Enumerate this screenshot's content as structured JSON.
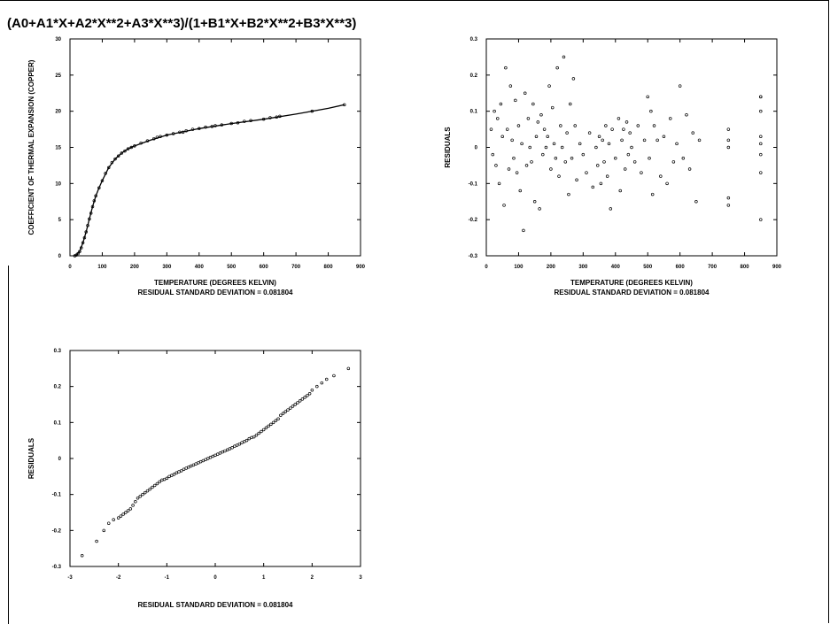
{
  "title": "(A0+A1*X+A2*X**2+A3*X**3)/(1+B1*X+B2*X**2+B3*X**3)",
  "chart_data": [
    {
      "id": "fit",
      "type": "scatter",
      "xlabel": "TEMPERATURE (DEGREES KELVIN)",
      "ylabel": "COEFFICIENT OF THERMAL EXPANSION (COPPER)",
      "subtitle": "RESIDUAL STANDARD DEVIATION = 0.081804",
      "xlim": [
        0,
        900
      ],
      "ylim": [
        0,
        30
      ],
      "xticks": [
        "0",
        "100",
        "200",
        "300",
        "400",
        "500",
        "600",
        "700",
        "800",
        "900"
      ],
      "yticks": [
        "0",
        "5",
        "10",
        "15",
        "20",
        "25",
        "30"
      ],
      "grid": false,
      "series": [
        {
          "kind": "points",
          "x": [
            15,
            20,
            25,
            30,
            35,
            40,
            45,
            50,
            55,
            60,
            65,
            70,
            75,
            80,
            90,
            100,
            110,
            120,
            130,
            140,
            150,
            160,
            170,
            180,
            190,
            200,
            220,
            240,
            260,
            270,
            280,
            300,
            320,
            340,
            350,
            360,
            380,
            400,
            420,
            440,
            450,
            470,
            500,
            520,
            540,
            560,
            600,
            620,
            640,
            650,
            750,
            850
          ],
          "y": [
            0.0,
            0.1,
            0.3,
            0.6,
            1.1,
            1.8,
            2.5,
            3.3,
            4.2,
            5.1,
            5.9,
            6.8,
            7.6,
            8.3,
            9.4,
            10.4,
            11.4,
            12.2,
            12.9,
            13.4,
            13.8,
            14.2,
            14.5,
            14.8,
            15.0,
            15.2,
            15.6,
            15.9,
            16.2,
            16.4,
            16.5,
            16.7,
            16.9,
            17.1,
            17.1,
            17.3,
            17.5,
            17.6,
            17.8,
            17.9,
            18.0,
            18.1,
            18.3,
            18.4,
            18.6,
            18.7,
            18.9,
            19.1,
            19.2,
            19.3,
            20.0,
            20.9
          ]
        },
        {
          "kind": "line",
          "x": [
            12,
            20,
            30,
            40,
            50,
            60,
            70,
            80,
            90,
            100,
            120,
            140,
            160,
            180,
            200,
            250,
            300,
            400,
            500,
            600,
            700,
            800,
            850
          ],
          "y": [
            0.0,
            0.1,
            0.6,
            1.8,
            3.3,
            5.1,
            6.8,
            8.3,
            9.4,
            10.4,
            12.2,
            13.4,
            14.2,
            14.8,
            15.2,
            16.0,
            16.7,
            17.6,
            18.3,
            18.9,
            19.6,
            20.4,
            20.9
          ]
        }
      ]
    },
    {
      "id": "resid",
      "type": "scatter",
      "xlabel": "TEMPERATURE (DEGREES KELVIN)",
      "ylabel": "RESIDUALS",
      "subtitle": "RESIDUAL STANDARD DEVIATION = 0.081804",
      "xlim": [
        0,
        900
      ],
      "ylim": [
        -0.3,
        0.3
      ],
      "xticks": [
        "0",
        "100",
        "200",
        "300",
        "400",
        "500",
        "600",
        "700",
        "800",
        "900"
      ],
      "yticks": [
        "-0.3",
        "-0.2",
        "-0.1",
        "0",
        "0.1",
        "0.2",
        "0.3"
      ],
      "grid": false,
      "series": [
        {
          "kind": "points",
          "x": [
            15,
            20,
            25,
            30,
            35,
            40,
            45,
            50,
            55,
            60,
            65,
            70,
            75,
            80,
            85,
            90,
            95,
            100,
            105,
            110,
            115,
            120,
            125,
            130,
            135,
            140,
            145,
            150,
            155,
            160,
            165,
            170,
            175,
            180,
            185,
            190,
            195,
            200,
            205,
            210,
            215,
            220,
            225,
            230,
            235,
            240,
            245,
            250,
            255,
            260,
            265,
            270,
            275,
            280,
            290,
            300,
            310,
            320,
            330,
            340,
            345,
            350,
            355,
            360,
            365,
            370,
            375,
            380,
            385,
            390,
            400,
            410,
            415,
            420,
            425,
            430,
            435,
            440,
            445,
            450,
            460,
            470,
            480,
            490,
            500,
            505,
            510,
            515,
            520,
            530,
            540,
            550,
            560,
            570,
            580,
            590,
            600,
            610,
            620,
            630,
            640,
            650,
            660,
            750,
            750,
            750,
            750,
            750,
            850,
            850,
            850,
            850,
            850,
            850,
            850,
            850
          ],
          "y": [
            0.05,
            -0.02,
            0.1,
            -0.05,
            0.08,
            -0.1,
            0.12,
            0.03,
            -0.16,
            0.22,
            0.05,
            -0.06,
            0.17,
            0.02,
            -0.03,
            0.13,
            -0.07,
            0.06,
            -0.12,
            0.01,
            -0.23,
            0.15,
            -0.05,
            0.08,
            0.0,
            -0.04,
            0.12,
            -0.15,
            0.03,
            0.07,
            -0.17,
            0.09,
            -0.02,
            0.05,
            0.0,
            0.03,
            0.17,
            -0.06,
            0.11,
            0.01,
            -0.03,
            0.22,
            -0.08,
            0.06,
            0.0,
            0.25,
            -0.04,
            0.04,
            -0.13,
            0.12,
            -0.03,
            0.19,
            0.06,
            -0.09,
            0.01,
            -0.02,
            -0.07,
            0.04,
            -0.11,
            0.0,
            -0.05,
            0.03,
            -0.1,
            0.02,
            -0.04,
            0.06,
            -0.08,
            0.01,
            -0.17,
            0.05,
            -0.03,
            0.08,
            -0.12,
            0.02,
            0.05,
            -0.06,
            0.07,
            -0.02,
            0.04,
            0.0,
            -0.04,
            0.06,
            -0.07,
            0.02,
            0.14,
            -0.03,
            0.1,
            -0.13,
            0.06,
            0.02,
            -0.08,
            0.03,
            -0.1,
            0.08,
            -0.04,
            0.01,
            0.17,
            -0.03,
            0.09,
            -0.06,
            0.04,
            -0.15,
            0.02,
            0.05,
            -0.14,
            -0.16,
            0.02,
            0.0,
            0.14,
            0.1,
            -0.2,
            0.03,
            0.01,
            -0.07,
            -0.02,
            0.14
          ]
        }
      ]
    },
    {
      "id": "probplot",
      "type": "scatter",
      "xlabel": "",
      "ylabel": "RESIDUALS",
      "subtitle": "RESIDUAL STANDARD DEVIATION = 0.081804",
      "xlim": [
        -3,
        3
      ],
      "ylim": [
        -0.3,
        0.3
      ],
      "xticks": [
        "-3",
        "-2",
        "-1",
        "0",
        "1",
        "2",
        "3"
      ],
      "yticks": [
        "-0.3",
        "-0.2",
        "-0.1",
        "0",
        "0.1",
        "0.2",
        "0.3"
      ],
      "grid": false,
      "series": [
        {
          "kind": "points",
          "x": [
            -2.75,
            -2.45,
            -2.3,
            -2.2,
            -2.1,
            -2.0,
            -1.95,
            -1.9,
            -1.85,
            -1.8,
            -1.75,
            -1.7,
            -1.65,
            -1.6,
            -1.55,
            -1.5,
            -1.45,
            -1.4,
            -1.35,
            -1.3,
            -1.25,
            -1.2,
            -1.15,
            -1.1,
            -1.05,
            -1.0,
            -0.95,
            -0.9,
            -0.85,
            -0.8,
            -0.75,
            -0.7,
            -0.65,
            -0.6,
            -0.55,
            -0.5,
            -0.45,
            -0.4,
            -0.35,
            -0.3,
            -0.25,
            -0.2,
            -0.15,
            -0.1,
            -0.05,
            0.0,
            0.05,
            0.1,
            0.15,
            0.2,
            0.25,
            0.3,
            0.35,
            0.4,
            0.45,
            0.5,
            0.55,
            0.6,
            0.65,
            0.7,
            0.75,
            0.8,
            0.85,
            0.9,
            0.95,
            1.0,
            1.05,
            1.1,
            1.15,
            1.2,
            1.25,
            1.3,
            1.35,
            1.4,
            1.45,
            1.5,
            1.55,
            1.6,
            1.65,
            1.7,
            1.75,
            1.8,
            1.85,
            1.9,
            1.95,
            2.0,
            2.1,
            2.2,
            2.3,
            2.45,
            2.75
          ],
          "y": [
            -0.27,
            -0.23,
            -0.2,
            -0.18,
            -0.17,
            -0.165,
            -0.16,
            -0.155,
            -0.15,
            -0.145,
            -0.14,
            -0.13,
            -0.12,
            -0.11,
            -0.105,
            -0.1,
            -0.095,
            -0.09,
            -0.085,
            -0.08,
            -0.075,
            -0.07,
            -0.065,
            -0.06,
            -0.058,
            -0.055,
            -0.05,
            -0.047,
            -0.044,
            -0.04,
            -0.037,
            -0.034,
            -0.03,
            -0.027,
            -0.024,
            -0.021,
            -0.018,
            -0.015,
            -0.012,
            -0.009,
            -0.006,
            -0.003,
            0.0,
            0.003,
            0.006,
            0.009,
            0.012,
            0.015,
            0.018,
            0.021,
            0.024,
            0.027,
            0.03,
            0.034,
            0.037,
            0.04,
            0.044,
            0.047,
            0.05,
            0.055,
            0.058,
            0.06,
            0.065,
            0.07,
            0.075,
            0.08,
            0.085,
            0.09,
            0.095,
            0.1,
            0.105,
            0.11,
            0.12,
            0.125,
            0.13,
            0.135,
            0.14,
            0.145,
            0.15,
            0.155,
            0.16,
            0.165,
            0.17,
            0.175,
            0.18,
            0.19,
            0.2,
            0.21,
            0.22,
            0.23,
            0.25
          ]
        }
      ]
    }
  ]
}
